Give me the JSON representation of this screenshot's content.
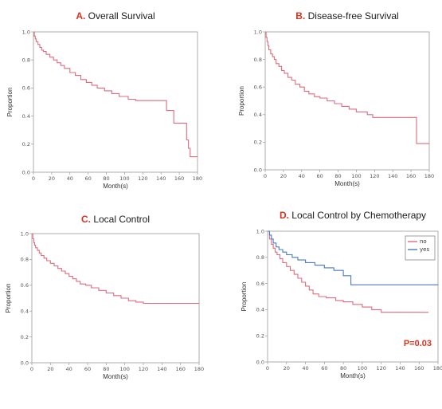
{
  "figure": {
    "colors": {
      "no": "#e06b7c",
      "yes": "#4a79c5",
      "title_letter": "#d9321f",
      "pvalue": "#d9321f"
    }
  },
  "chart_data": [
    {
      "type": "line",
      "title_letter": "A.",
      "title": "Overall Survival",
      "xlabel": "Month(s)",
      "ylabel": "Proportion",
      "xlim": [
        0,
        180
      ],
      "ylim": [
        0,
        1
      ],
      "xticks": [
        0,
        20,
        40,
        60,
        80,
        100,
        120,
        140,
        160,
        180
      ],
      "yticks": [
        0,
        0.2,
        0.4,
        0.6,
        0.8,
        1
      ],
      "grid": false,
      "series": [
        {
          "color": "#e06b7c",
          "steps": true,
          "x": [
            0,
            1,
            2,
            3,
            5,
            7,
            9,
            11,
            14,
            18,
            22,
            26,
            30,
            34,
            40,
            46,
            52,
            58,
            64,
            70,
            78,
            86,
            94,
            104,
            112,
            146,
            154,
            168,
            170,
            172,
            180
          ],
          "y": [
            1.0,
            0.97,
            0.95,
            0.93,
            0.91,
            0.89,
            0.87,
            0.86,
            0.84,
            0.82,
            0.8,
            0.78,
            0.76,
            0.74,
            0.71,
            0.69,
            0.66,
            0.64,
            0.62,
            0.6,
            0.58,
            0.56,
            0.54,
            0.52,
            0.51,
            0.44,
            0.35,
            0.23,
            0.17,
            0.11,
            0.11
          ]
        }
      ]
    },
    {
      "type": "line",
      "title_letter": "B.",
      "title": "Disease-free Survival",
      "xlabel": "Month(s)",
      "ylabel": "Proportion",
      "xlim": [
        0,
        180
      ],
      "ylim": [
        0,
        1
      ],
      "xticks": [
        0,
        20,
        40,
        60,
        80,
        100,
        120,
        140,
        160,
        180
      ],
      "yticks": [
        0,
        0.2,
        0.4,
        0.6,
        0.8,
        1
      ],
      "grid": false,
      "series": [
        {
          "color": "#e06b7c",
          "steps": true,
          "x": [
            0,
            1,
            2,
            3,
            4,
            6,
            8,
            10,
            12,
            15,
            18,
            21,
            25,
            29,
            33,
            38,
            43,
            48,
            54,
            60,
            68,
            76,
            84,
            92,
            100,
            112,
            118,
            166,
            170,
            180
          ],
          "y": [
            1.0,
            0.96,
            0.93,
            0.9,
            0.87,
            0.84,
            0.82,
            0.8,
            0.77,
            0.75,
            0.72,
            0.7,
            0.67,
            0.65,
            0.62,
            0.6,
            0.57,
            0.55,
            0.53,
            0.52,
            0.5,
            0.48,
            0.46,
            0.44,
            0.42,
            0.4,
            0.38,
            0.19,
            0.19,
            0.19
          ]
        }
      ]
    },
    {
      "type": "line",
      "title_letter": "C.",
      "title": "Local Control",
      "xlabel": "Month(s)",
      "ylabel": "Proportion",
      "xlim": [
        0,
        180
      ],
      "ylim": [
        0,
        1
      ],
      "xticks": [
        0,
        20,
        40,
        60,
        80,
        100,
        120,
        140,
        160,
        180
      ],
      "yticks": [
        0,
        0.2,
        0.4,
        0.6,
        0.8,
        1
      ],
      "grid": false,
      "series": [
        {
          "color": "#e06b7c",
          "steps": true,
          "x": [
            0,
            1,
            2,
            3,
            4,
            6,
            8,
            10,
            13,
            16,
            20,
            24,
            28,
            32,
            36,
            40,
            44,
            48,
            52,
            58,
            64,
            72,
            80,
            88,
            96,
            104,
            112,
            120,
            180
          ],
          "y": [
            1.0,
            0.96,
            0.93,
            0.91,
            0.89,
            0.87,
            0.85,
            0.83,
            0.81,
            0.79,
            0.77,
            0.75,
            0.73,
            0.71,
            0.69,
            0.67,
            0.65,
            0.63,
            0.61,
            0.6,
            0.58,
            0.56,
            0.54,
            0.52,
            0.5,
            0.48,
            0.47,
            0.46,
            0.46
          ]
        }
      ]
    },
    {
      "type": "line",
      "title_letter": "D.",
      "title": "Local Control by Chemotherapy",
      "xlabel": "Month(s)",
      "ylabel": "Proportion",
      "xlim": [
        0,
        180
      ],
      "ylim": [
        0,
        1
      ],
      "xticks": [
        0,
        20,
        40,
        60,
        80,
        100,
        120,
        140,
        160,
        180
      ],
      "yticks": [
        0,
        0.2,
        0.4,
        0.6,
        0.8,
        1
      ],
      "grid": false,
      "legend": "top-right",
      "annotation": "P=0.03",
      "series": [
        {
          "name": "no",
          "color": "#e06b7c",
          "steps": true,
          "x": [
            0,
            2,
            4,
            6,
            8,
            10,
            13,
            16,
            20,
            24,
            28,
            32,
            36,
            40,
            44,
            48,
            54,
            62,
            72,
            80,
            90,
            100,
            110,
            120,
            170
          ],
          "y": [
            1.0,
            0.94,
            0.9,
            0.87,
            0.84,
            0.82,
            0.79,
            0.76,
            0.73,
            0.7,
            0.67,
            0.64,
            0.61,
            0.58,
            0.55,
            0.52,
            0.5,
            0.49,
            0.47,
            0.46,
            0.44,
            0.42,
            0.4,
            0.38,
            0.38
          ]
        },
        {
          "name": "yes",
          "color": "#4a79c5",
          "steps": true,
          "x": [
            0,
            2,
            4,
            6,
            9,
            12,
            16,
            20,
            26,
            32,
            40,
            50,
            60,
            70,
            80,
            88,
            180
          ],
          "y": [
            1.0,
            0.97,
            0.94,
            0.91,
            0.88,
            0.86,
            0.84,
            0.82,
            0.8,
            0.78,
            0.76,
            0.74,
            0.72,
            0.7,
            0.66,
            0.59,
            0.59
          ]
        }
      ]
    }
  ]
}
